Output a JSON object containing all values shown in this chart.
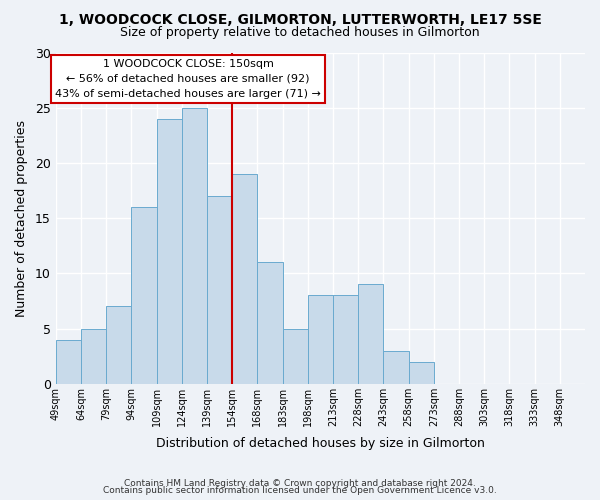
{
  "title": "1, WOODCOCK CLOSE, GILMORTON, LUTTERWORTH, LE17 5SE",
  "subtitle": "Size of property relative to detached houses in Gilmorton",
  "xlabel": "Distribution of detached houses by size in Gilmorton",
  "ylabel": "Number of detached properties",
  "bar_color": "#c8daea",
  "bar_edge_color": "#6aaacf",
  "bin_labels": [
    "49sqm",
    "64sqm",
    "79sqm",
    "94sqm",
    "109sqm",
    "124sqm",
    "139sqm",
    "154sqm",
    "168sqm",
    "183sqm",
    "198sqm",
    "213sqm",
    "228sqm",
    "243sqm",
    "258sqm",
    "273sqm",
    "288sqm",
    "303sqm",
    "318sqm",
    "333sqm",
    "348sqm"
  ],
  "bar_heights": [
    4,
    5,
    7,
    16,
    24,
    25,
    17,
    19,
    11,
    5,
    8,
    8,
    9,
    3,
    2,
    0,
    0,
    0,
    0,
    0,
    0
  ],
  "vline_x": 7,
  "vline_color": "#cc0000",
  "ylim": [
    0,
    30
  ],
  "yticks": [
    0,
    5,
    10,
    15,
    20,
    25,
    30
  ],
  "annotation_title": "1 WOODCOCK CLOSE: 150sqm",
  "annotation_line1": "← 56% of detached houses are smaller (92)",
  "annotation_line2": "43% of semi-detached houses are larger (71) →",
  "annotation_box_color": "#ffffff",
  "annotation_box_edge": "#cc0000",
  "footnote1": "Contains HM Land Registry data © Crown copyright and database right 2024.",
  "footnote2": "Contains public sector information licensed under the Open Government Licence v3.0.",
  "background_color": "#eef2f7",
  "grid_color": "#ffffff"
}
